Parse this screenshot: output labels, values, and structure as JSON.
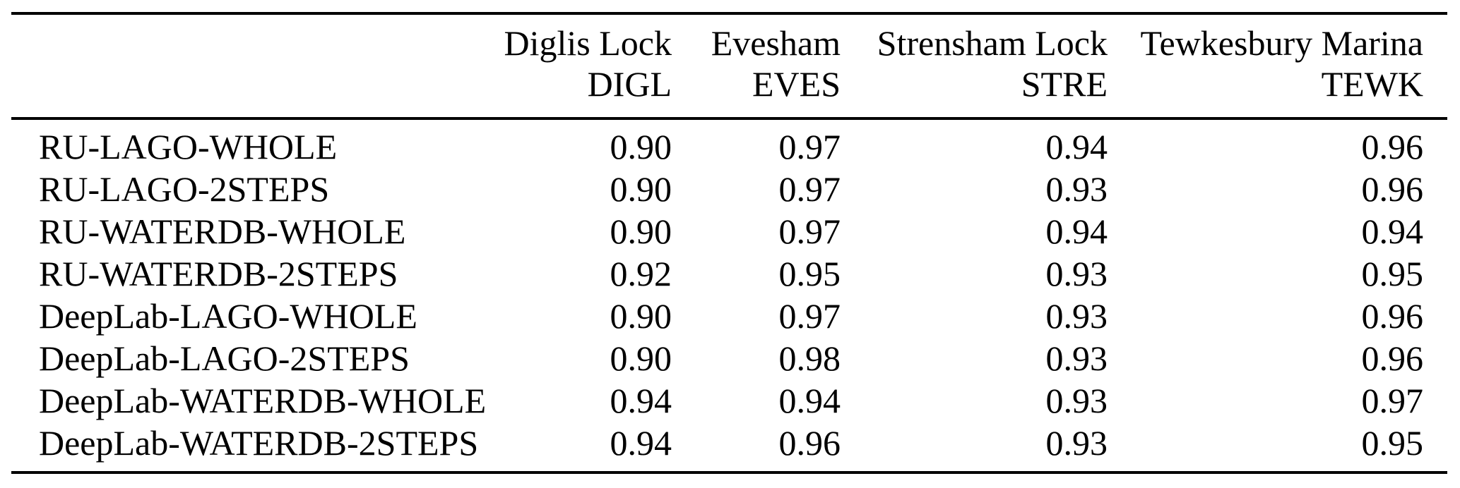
{
  "table": {
    "background_color": "#ffffff",
    "text_color": "#000000",
    "columns": [
      {
        "name": "Diglis Lock",
        "code": "DIGL"
      },
      {
        "name": "Evesham",
        "code": "EVES"
      },
      {
        "name": "Strensham Lock",
        "code": "STRE"
      },
      {
        "name": "Tewkesbury Marina",
        "code": "TEWK"
      }
    ],
    "rows": [
      {
        "label": "RU-LAGO-WHOLE",
        "values": [
          "0.90",
          "0.97",
          "0.94",
          "0.96"
        ]
      },
      {
        "label": "RU-LAGO-2STEPS",
        "values": [
          "0.90",
          "0.97",
          "0.93",
          "0.96"
        ]
      },
      {
        "label": "RU-WATERDB-WHOLE",
        "values": [
          "0.90",
          "0.97",
          "0.94",
          "0.94"
        ]
      },
      {
        "label": "RU-WATERDB-2STEPS",
        "values": [
          "0.92",
          "0.95",
          "0.93",
          "0.95"
        ]
      },
      {
        "label": "DeepLab-LAGO-WHOLE",
        "values": [
          "0.90",
          "0.97",
          "0.93",
          "0.96"
        ]
      },
      {
        "label": "DeepLab-LAGO-2STEPS",
        "values": [
          "0.90",
          "0.98",
          "0.93",
          "0.96"
        ]
      },
      {
        "label": "DeepLab-WATERDB-WHOLE",
        "values": [
          "0.94",
          "0.94",
          "0.93",
          "0.97"
        ]
      },
      {
        "label": "DeepLab-WATERDB-2STEPS",
        "values": [
          "0.94",
          "0.96",
          "0.93",
          "0.95"
        ]
      }
    ]
  }
}
